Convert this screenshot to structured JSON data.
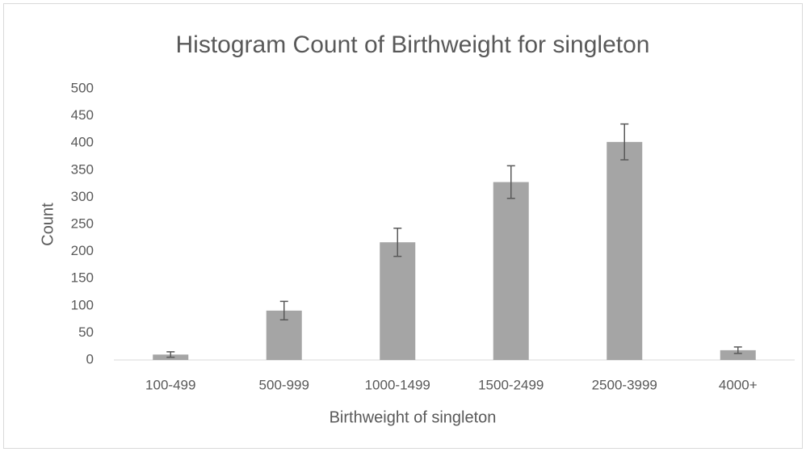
{
  "chart_data": {
    "type": "bar",
    "title": "Histogram Count of Birthweight for singleton",
    "x_label": "Birthweight of singleton",
    "y_label": "Count",
    "categories": [
      "100-499",
      "500-999",
      "1000-1499",
      "1500-2499",
      "2500-3999",
      "4000+"
    ],
    "values": [
      10,
      91,
      217,
      328,
      402,
      18
    ],
    "errors": [
      5,
      17,
      26,
      30,
      33,
      6
    ],
    "color": "#a5a5a5",
    "error_color": "#595959",
    "ylim": [
      0,
      500
    ],
    "yticks": [
      0,
      50,
      100,
      150,
      200,
      250,
      300,
      350,
      400,
      450,
      500
    ],
    "grid": false
  }
}
